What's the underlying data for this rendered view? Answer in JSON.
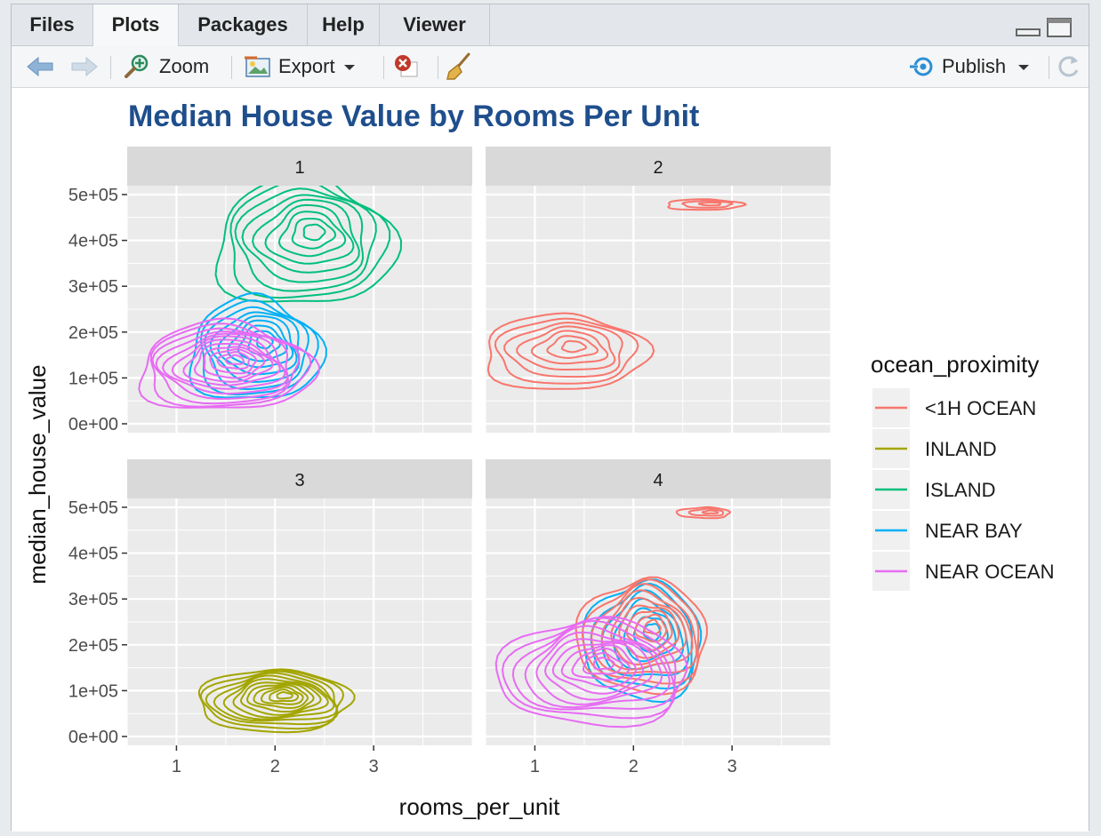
{
  "tabs": [
    {
      "label": "Files",
      "active": false
    },
    {
      "label": "Plots",
      "active": true
    },
    {
      "label": "Packages",
      "active": false
    },
    {
      "label": "Help",
      "active": false
    },
    {
      "label": "Viewer",
      "active": false
    }
  ],
  "toolbar": {
    "zoom_label": "Zoom",
    "export_label": "Export",
    "publish_label": "Publish",
    "icons": [
      "back-arrow-icon",
      "forward-arrow-icon",
      "zoom-icon",
      "export-icon",
      "remove-plot-icon",
      "broom-icon",
      "publish-icon",
      "refresh-icon"
    ]
  },
  "colors": {
    "title": "#1f4e8c",
    "panel_bg": "#ebebeb",
    "strip_bg": "#d9d9d9",
    "<1H OCEAN": "#f8766d",
    "INLAND": "#a3a500",
    "ISLAND": "#00bf7d",
    "NEAR BAY": "#00b0f6",
    "NEAR OCEAN": "#e76bf3"
  },
  "chart_data": {
    "type": "contour",
    "title": "Median House Value by Rooms Per Unit",
    "xlabel": "rooms_per_unit",
    "ylabel": "median_house_value",
    "xlim": [
      0.5,
      4.0
    ],
    "ylim": [
      0,
      500000
    ],
    "x_ticks": [
      "1",
      "2",
      "3"
    ],
    "y_ticks": [
      "0e+00",
      "1e+05",
      "2e+05",
      "3e+05",
      "4e+05",
      "5e+05"
    ],
    "facets": [
      "1",
      "2",
      "3",
      "4"
    ],
    "legend": {
      "title": "ocean_proximity",
      "position": "right",
      "entries": [
        "<1H OCEAN",
        "INLAND",
        "ISLAND",
        "NEAR BAY",
        "NEAR OCEAN"
      ]
    },
    "series": [
      {
        "name": "ISLAND",
        "facet": "1",
        "peak": [
          2.4,
          420000
        ],
        "spread": [
          0.95,
          150000
        ],
        "levels": 9
      },
      {
        "name": "NEAR BAY",
        "facet": "1",
        "peak": [
          1.9,
          180000
        ],
        "spread": [
          0.7,
          120000
        ],
        "levels": 9
      },
      {
        "name": "NEAR OCEAN",
        "facet": "1",
        "peak": [
          1.6,
          140000
        ],
        "spread": [
          0.9,
          100000
        ],
        "levels": 12
      },
      {
        "name": "<1H OCEAN",
        "facet": "2",
        "peak": [
          1.4,
          170000
        ],
        "spread": [
          0.9,
          90000
        ],
        "levels": 7
      },
      {
        "name": "<1H OCEAN",
        "facet": "2",
        "peak": [
          2.8,
          480000
        ],
        "spread": [
          0.5,
          15000
        ],
        "levels": 3
      },
      {
        "name": "INLAND",
        "facet": "3",
        "peak": [
          2.1,
          90000
        ],
        "spread": [
          0.8,
          70000
        ],
        "levels": 12
      },
      {
        "name": "NEAR BAY",
        "facet": "4",
        "peak": [
          2.2,
          230000
        ],
        "spread": [
          0.65,
          140000
        ],
        "levels": 7
      },
      {
        "name": "<1H OCEAN",
        "facet": "4",
        "peak": [
          2.2,
          240000
        ],
        "spread": [
          0.7,
          130000
        ],
        "levels": 9
      },
      {
        "name": "NEAR OCEAN",
        "facet": "4",
        "peak": [
          1.7,
          160000
        ],
        "spread": [
          1.0,
          120000
        ],
        "levels": 11
      },
      {
        "name": "<1H OCEAN",
        "facet": "4",
        "peak": [
          2.8,
          490000
        ],
        "spread": [
          0.35,
          15000
        ],
        "levels": 3
      }
    ]
  }
}
